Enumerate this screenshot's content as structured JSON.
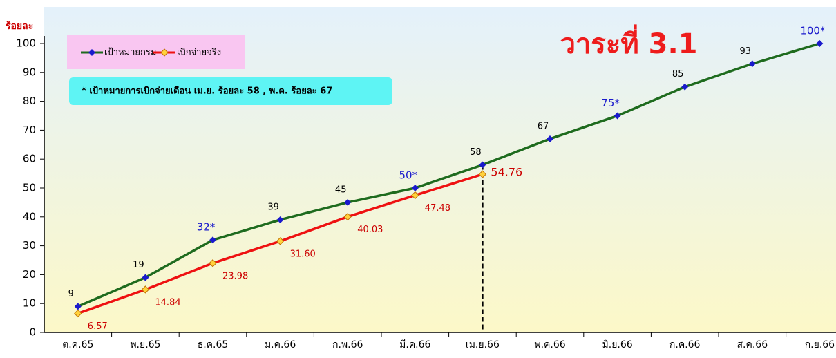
{
  "chart_data": {
    "type": "line",
    "title": "วาระที่ 3.1",
    "y_label": "ร้อยละ",
    "annotation": "* เป้าหมายการเบิกจ่ายเดือน  เม.ย. ร้อยละ 58 , พ.ค. ร้อยละ  67",
    "categories": [
      "ต.ค.65",
      "พ.ย.65",
      "ธ.ค.65",
      "ม.ค.66",
      "ก.พ.66",
      "มี.ค.66",
      "เม.ย.66",
      "พ.ค.66",
      "มิ.ย.66",
      "ก.ค.66",
      "ส.ค.66",
      "ก.ย.66"
    ],
    "series": [
      {
        "name": "เป้าหมายกรม",
        "color": "#1e6b1e",
        "marker_color": "#1a1acc",
        "values": [
          9,
          19,
          32,
          39,
          45,
          50,
          58,
          67,
          75,
          85,
          93,
          100
        ],
        "value_labels": [
          "9",
          "19",
          "32*",
          "39",
          "45",
          "50*",
          "58",
          "67",
          "75*",
          "85",
          "93",
          "100*"
        ]
      },
      {
        "name": "เบิกจ่ายจริง",
        "color": "#ee1111",
        "marker_color": "#ffd23c",
        "values": [
          6.57,
          14.84,
          23.98,
          31.6,
          40.03,
          47.48,
          54.76,
          null,
          null,
          null,
          null,
          null
        ],
        "value_labels": [
          "6.57",
          "14.84",
          "23.98",
          "31.60",
          "40.03",
          "47.48",
          "54.76",
          null,
          null,
          null,
          null,
          null
        ]
      }
    ],
    "ylim": [
      0,
      100
    ],
    "yticks": [
      0,
      10,
      20,
      30,
      40,
      50,
      60,
      70,
      80,
      90,
      100
    ],
    "grid": false,
    "legend": "top-left"
  }
}
